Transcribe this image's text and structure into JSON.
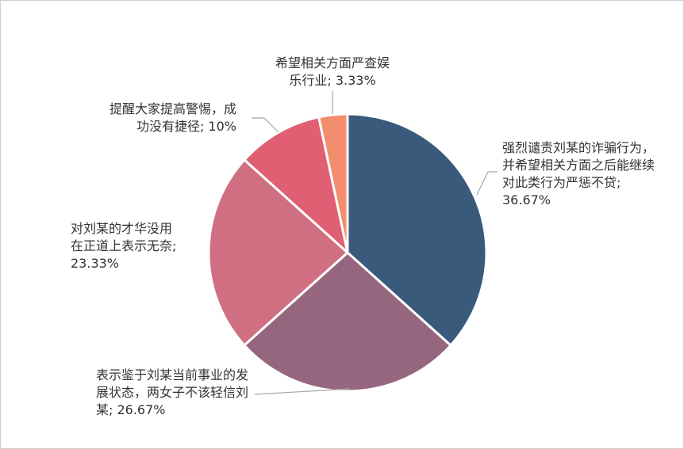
{
  "chart_data": {
    "type": "pie",
    "labels": [
      "强烈谴责刘某的诈骗行为，并希望相关方面之后能继续对此类行为严惩不贷; 36.67%",
      "表示鉴于刘某当前事业的发展状态，两女子不该轻信刘某; 26.67%",
      "对刘某的才华没用在正道上表示无奈; 23.33%",
      "提醒大家提高警惕，成功没有捷径; 10%",
      "希望相关方面严查娱乐行业; 3.33%"
    ],
    "values": [
      36.67,
      26.67,
      23.33,
      10,
      3.33
    ],
    "colors": [
      "#3a5a7c",
      "#96667f",
      "#d06f81",
      "#e05f73",
      "#f28e6e"
    ]
  }
}
